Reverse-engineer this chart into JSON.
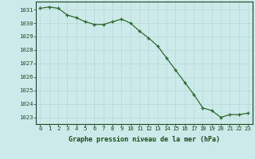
{
  "x": [
    0,
    1,
    2,
    3,
    4,
    5,
    6,
    7,
    8,
    9,
    10,
    11,
    12,
    13,
    14,
    15,
    16,
    17,
    18,
    19,
    20,
    21,
    22,
    23
  ],
  "y": [
    1031.1,
    1031.2,
    1031.1,
    1030.6,
    1030.4,
    1030.1,
    1029.9,
    1029.9,
    1030.1,
    1030.3,
    1030.0,
    1029.4,
    1028.9,
    1028.3,
    1027.4,
    1026.5,
    1025.6,
    1024.7,
    1023.7,
    1023.5,
    1023.0,
    1023.2,
    1023.2,
    1023.3
  ],
  "line_color": "#2d6a2d",
  "marker_color": "#2d6a2d",
  "bg_color": "#cceaea",
  "grid_color": "#b8d8d8",
  "text_color": "#1a4a1a",
  "xlabel": "Graphe pression niveau de la mer (hPa)",
  "ylim": [
    1022.5,
    1031.6
  ],
  "yticks": [
    1023,
    1024,
    1025,
    1026,
    1027,
    1028,
    1029,
    1030,
    1031
  ],
  "xticks": [
    0,
    1,
    2,
    3,
    4,
    5,
    6,
    7,
    8,
    9,
    10,
    11,
    12,
    13,
    14,
    15,
    16,
    17,
    18,
    19,
    20,
    21,
    22,
    23
  ],
  "xlabel_fontsize": 6.0,
  "tick_fontsize": 5.2
}
